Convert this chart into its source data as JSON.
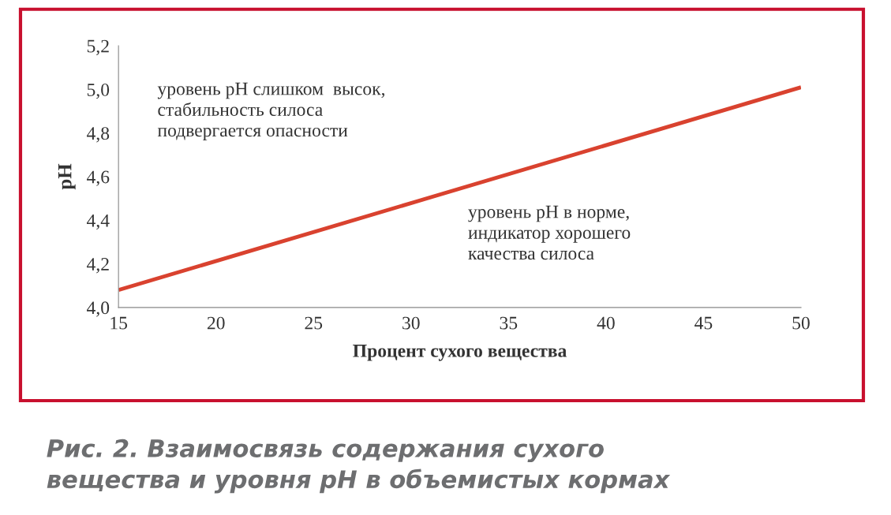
{
  "chart_data": {
    "type": "line",
    "xlabel": "Процент сухого вещества",
    "ylabel": "pH",
    "x": [
      15,
      50
    ],
    "series": [
      {
        "color": "#d9422f",
        "values": [
          4.08,
          5.01
        ]
      }
    ],
    "xlim": [
      15,
      50
    ],
    "xticks": [
      15,
      20,
      25,
      30,
      35,
      40,
      45,
      50
    ],
    "ylim": [
      4.0,
      5.2
    ],
    "yticks": [
      {
        "value": 4.0,
        "label": "4,0"
      },
      {
        "value": 4.2,
        "label": "4,2"
      },
      {
        "value": 4.4,
        "label": "4,4"
      },
      {
        "value": 4.6,
        "label": "4,6"
      },
      {
        "value": 4.8,
        "label": "4,8"
      },
      {
        "value": 5.0,
        "label": "5,0"
      },
      {
        "value": 5.2,
        "label": "5,2"
      }
    ],
    "grid": false,
    "marker": "none",
    "line_style": "solid",
    "annotations": [
      "уровень pH слишком  высок,\nстабильность силоса\nподвергается опасности",
      "уровень pH в норме,\nиндикатор хорошего\nкачества силоса",
      "Рис. 2. Взаимосвязь содержания сухого\nвещества и уровня pH в объемистых кормах"
    ]
  }
}
